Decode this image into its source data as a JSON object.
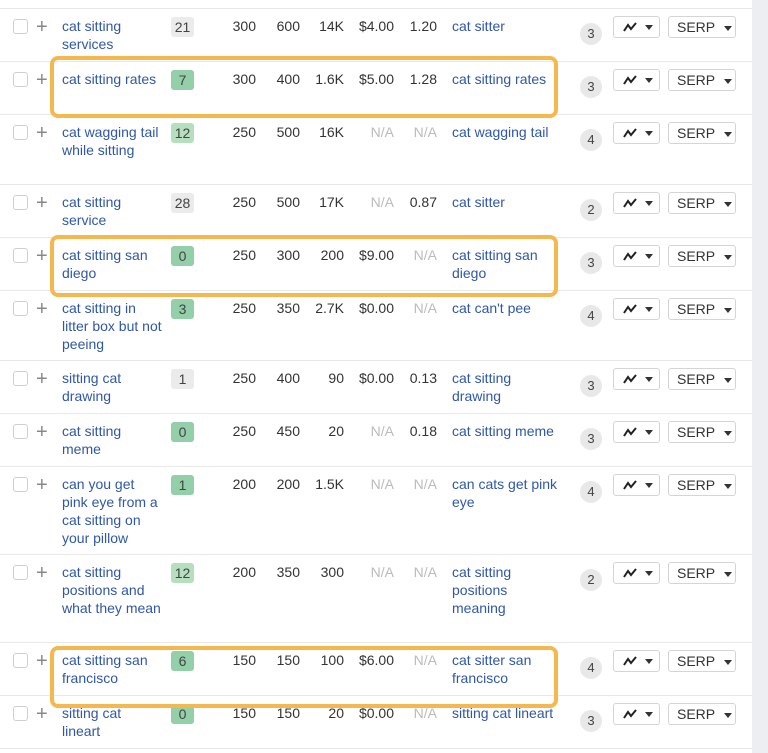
{
  "colors": {
    "kd_gray": "#ebebeb",
    "kd_green": "#93cfa9",
    "kd_light_green": "#b5dfbf",
    "highlight": "#f5b84f",
    "link": "#2f57a8"
  },
  "serp_label": "SERP",
  "rows": [
    {
      "keyword": "cat sitting services",
      "kd": "21",
      "kd_color": "gray",
      "c1": "300",
      "c2": "600",
      "c3": "14K",
      "cpc": "$4.00",
      "cps": "1.20",
      "parent": "cat sitter",
      "count": "3",
      "lines": 2
    },
    {
      "keyword": "cat sitting rates",
      "kd": "7",
      "kd_color": "green",
      "c1": "300",
      "c2": "400",
      "c3": "1.6K",
      "cpc": "$5.00",
      "cps": "1.28",
      "parent": "cat sitting rates",
      "count": "3",
      "lines": 2,
      "highlighted": true
    },
    {
      "keyword": "cat wagging tail while sitting",
      "kd": "12",
      "kd_color": "light_green",
      "c1": "250",
      "c2": "500",
      "c3": "16K",
      "cpc": "N/A",
      "cps": "N/A",
      "parent": "cat wagging tail",
      "count": "4",
      "lines": 3
    },
    {
      "keyword": "cat sitting service",
      "kd": "28",
      "kd_color": "gray",
      "c1": "250",
      "c2": "500",
      "c3": "17K",
      "cpc": "N/A",
      "cps": "0.87",
      "parent": "cat sitter",
      "count": "2",
      "lines": 2
    },
    {
      "keyword": "cat sitting san diego",
      "kd": "0",
      "kd_color": "green",
      "c1": "250",
      "c2": "300",
      "c3": "200",
      "cpc": "$9.00",
      "cps": "N/A",
      "parent": "cat sitting san diego",
      "count": "3",
      "lines": 2,
      "highlighted": true
    },
    {
      "keyword": "cat sitting in litter box but not peeing",
      "kd": "3",
      "kd_color": "green",
      "c1": "250",
      "c2": "350",
      "c3": "2.7K",
      "cpc": "$0.00",
      "cps": "N/A",
      "parent": "cat can't pee",
      "count": "4",
      "lines": 3
    },
    {
      "keyword": "sitting cat drawing",
      "kd": "1",
      "kd_color": "gray",
      "c1": "250",
      "c2": "400",
      "c3": "90",
      "cpc": "$0.00",
      "cps": "0.13",
      "parent": "cat sitting drawing",
      "count": "3",
      "lines": 2
    },
    {
      "keyword": "cat sitting meme",
      "kd": "0",
      "kd_color": "green",
      "c1": "250",
      "c2": "450",
      "c3": "20",
      "cpc": "N/A",
      "cps": "0.18",
      "parent": "cat sitting meme",
      "count": "3",
      "lines": 2
    },
    {
      "keyword": "can you get pink eye from a cat sitting on your pillow",
      "kd": "1",
      "kd_color": "green",
      "c1": "200",
      "c2": "200",
      "c3": "1.5K",
      "cpc": "N/A",
      "cps": "N/A",
      "parent": "can cats get pink eye",
      "count": "4",
      "lines": 4
    },
    {
      "keyword": "cat sitting positions and what they mean",
      "kd": "12",
      "kd_color": "light_green",
      "c1": "200",
      "c2": "350",
      "c3": "300",
      "cpc": "N/A",
      "cps": "N/A",
      "parent": "cat sitting positions meaning",
      "count": "2",
      "lines": 4
    },
    {
      "keyword": "cat sitting san francisco",
      "kd": "6",
      "kd_color": "green",
      "c1": "150",
      "c2": "150",
      "c3": "100",
      "cpc": "$6.00",
      "cps": "N/A",
      "parent": "cat sitter san francisco",
      "count": "4",
      "lines": 2,
      "highlighted": true
    },
    {
      "keyword": "sitting cat lineart",
      "kd": "0",
      "kd_color": "green",
      "c1": "150",
      "c2": "150",
      "c3": "20",
      "cpc": "$0.00",
      "cps": "N/A",
      "parent": "sitting cat lineart",
      "count": "3",
      "lines": 2
    }
  ]
}
